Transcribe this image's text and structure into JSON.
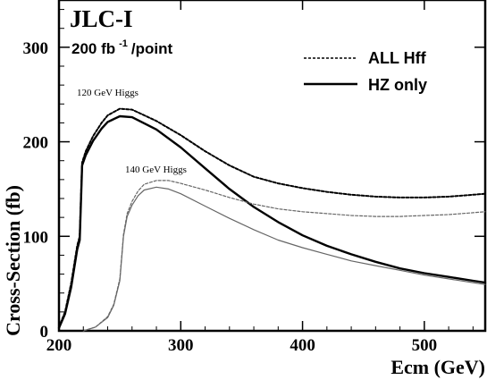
{
  "chart_data": {
    "type": "line",
    "title": "JLC-I",
    "subtitle_base": "200 fb",
    "subtitle_sup": "-1",
    "subtitle_tail": "/point",
    "xlabel": "Ecm (GeV)",
    "ylabel": "Cross-Section (fb)",
    "xlim": [
      200,
      550
    ],
    "ylim": [
      0,
      350
    ],
    "x_ticks": [
      200,
      300,
      400,
      500
    ],
    "y_ticks": [
      0,
      100,
      200,
      300
    ],
    "grid": false,
    "legend_position": "top-right",
    "legend": [
      {
        "label": "ALL Hff",
        "style": "dashed"
      },
      {
        "label": "HZ only",
        "style": "solid"
      }
    ],
    "annotations": [
      "120 GeV Higgs",
      "140 GeV Higgs"
    ],
    "series": [
      {
        "group": "120 GeV Higgs",
        "variant": "ALL Hff",
        "style": "dashed",
        "color": "#000000",
        "width": 2.0,
        "points": [
          [
            200,
            4
          ],
          [
            205,
            20
          ],
          [
            210,
            50
          ],
          [
            215,
            90
          ],
          [
            217,
            100
          ],
          [
            219,
            178
          ],
          [
            222,
            190
          ],
          [
            228,
            206
          ],
          [
            235,
            220
          ],
          [
            240,
            228
          ],
          [
            250,
            235
          ],
          [
            260,
            234
          ],
          [
            280,
            222
          ],
          [
            300,
            207
          ],
          [
            320,
            190
          ],
          [
            340,
            175
          ],
          [
            360,
            163
          ],
          [
            380,
            156
          ],
          [
            400,
            151
          ],
          [
            420,
            147
          ],
          [
            440,
            144
          ],
          [
            460,
            142
          ],
          [
            480,
            141
          ],
          [
            500,
            141
          ],
          [
            520,
            142
          ],
          [
            540,
            144
          ],
          [
            550,
            145
          ]
        ]
      },
      {
        "group": "120 GeV Higgs",
        "variant": "HZ only",
        "style": "solid",
        "color": "#000000",
        "width": 2.4,
        "points": [
          [
            200,
            3
          ],
          [
            205,
            18
          ],
          [
            210,
            46
          ],
          [
            215,
            86
          ],
          [
            217,
            96
          ],
          [
            219,
            175
          ],
          [
            222,
            186
          ],
          [
            228,
            201
          ],
          [
            235,
            214
          ],
          [
            240,
            221
          ],
          [
            250,
            227
          ],
          [
            260,
            226
          ],
          [
            280,
            213
          ],
          [
            300,
            194
          ],
          [
            320,
            172
          ],
          [
            340,
            150
          ],
          [
            360,
            131
          ],
          [
            380,
            115
          ],
          [
            400,
            101
          ],
          [
            420,
            90
          ],
          [
            440,
            81
          ],
          [
            460,
            73
          ],
          [
            480,
            66
          ],
          [
            500,
            61
          ],
          [
            520,
            57
          ],
          [
            540,
            53
          ],
          [
            550,
            51
          ]
        ]
      },
      {
        "group": "140 GeV Higgs",
        "variant": "ALL Hff",
        "style": "dashed",
        "color": "#666666",
        "width": 1.2,
        "points": [
          [
            220,
            0
          ],
          [
            230,
            4
          ],
          [
            240,
            15
          ],
          [
            245,
            28
          ],
          [
            250,
            55
          ],
          [
            253,
            102
          ],
          [
            256,
            124
          ],
          [
            260,
            137
          ],
          [
            265,
            148
          ],
          [
            270,
            155
          ],
          [
            280,
            159
          ],
          [
            290,
            159
          ],
          [
            300,
            156
          ],
          [
            320,
            149
          ],
          [
            340,
            141
          ],
          [
            360,
            134
          ],
          [
            380,
            129
          ],
          [
            400,
            126
          ],
          [
            420,
            124
          ],
          [
            440,
            122
          ],
          [
            460,
            121
          ],
          [
            480,
            121
          ],
          [
            500,
            122
          ],
          [
            520,
            123
          ],
          [
            540,
            125
          ],
          [
            550,
            126
          ]
        ]
      },
      {
        "group": "140 GeV Higgs",
        "variant": "HZ only",
        "style": "solid",
        "color": "#666666",
        "width": 1.2,
        "points": [
          [
            220,
            0
          ],
          [
            230,
            4
          ],
          [
            240,
            14
          ],
          [
            245,
            27
          ],
          [
            250,
            53
          ],
          [
            253,
            100
          ],
          [
            256,
            121
          ],
          [
            260,
            133
          ],
          [
            265,
            143
          ],
          [
            270,
            149
          ],
          [
            280,
            152
          ],
          [
            290,
            150
          ],
          [
            300,
            145
          ],
          [
            320,
            132
          ],
          [
            340,
            119
          ],
          [
            360,
            107
          ],
          [
            380,
            96
          ],
          [
            400,
            88
          ],
          [
            420,
            81
          ],
          [
            440,
            74
          ],
          [
            460,
            69
          ],
          [
            480,
            64
          ],
          [
            500,
            59
          ],
          [
            520,
            55
          ],
          [
            540,
            51
          ],
          [
            550,
            49
          ]
        ]
      }
    ]
  }
}
